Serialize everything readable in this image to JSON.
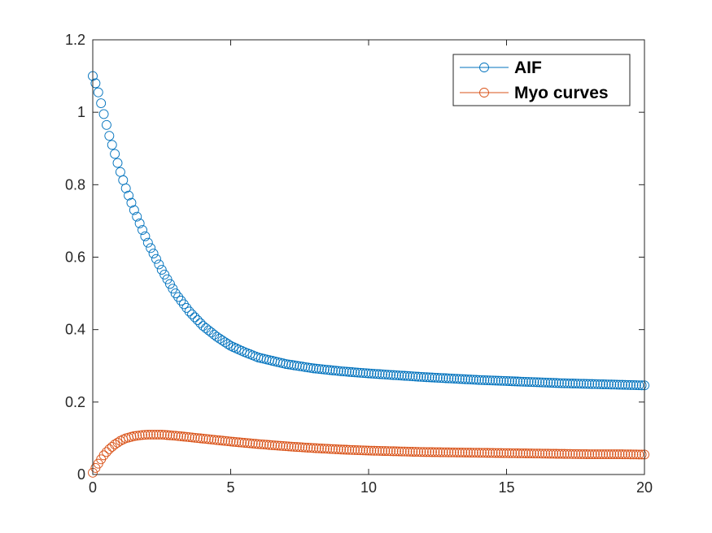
{
  "chart_data": {
    "type": "scatter",
    "title": "",
    "xlabel": "",
    "ylabel": "",
    "xlim": [
      0,
      20
    ],
    "ylim": [
      0,
      1.2
    ],
    "xticks": [
      "0",
      "5",
      "10",
      "15",
      "20"
    ],
    "yticks": [
      "0",
      "0.2",
      "0.4",
      "0.6",
      "0.8",
      "1",
      "1.2"
    ],
    "grid": false,
    "legend_position": "top-right",
    "marker": "circle",
    "series": [
      {
        "name": "AIF",
        "color": "#0072BD",
        "points": [
          [
            0.0,
            1.1
          ],
          [
            0.1,
            1.08
          ],
          [
            0.2,
            1.055
          ],
          [
            0.3,
            1.025
          ],
          [
            0.4,
            0.995
          ],
          [
            0.5,
            0.965
          ],
          [
            0.6,
            0.935
          ],
          [
            0.8,
            0.885
          ],
          [
            1.0,
            0.835
          ],
          [
            1.2,
            0.79
          ],
          [
            1.5,
            0.73
          ],
          [
            1.8,
            0.675
          ],
          [
            2.0,
            0.64
          ],
          [
            2.5,
            0.565
          ],
          [
            3.0,
            0.5
          ],
          [
            3.5,
            0.45
          ],
          [
            4.0,
            0.41
          ],
          [
            4.5,
            0.38
          ],
          [
            5.0,
            0.355
          ],
          [
            5.5,
            0.338
          ],
          [
            6.0,
            0.323
          ],
          [
            7.0,
            0.305
          ],
          [
            8.0,
            0.293
          ],
          [
            9.0,
            0.285
          ],
          [
            10.0,
            0.279
          ],
          [
            11.0,
            0.274
          ],
          [
            12.0,
            0.269
          ],
          [
            13.0,
            0.265
          ],
          [
            14.0,
            0.261
          ],
          [
            15.0,
            0.258
          ],
          [
            16.0,
            0.255
          ],
          [
            17.0,
            0.252
          ],
          [
            18.0,
            0.25
          ],
          [
            19.0,
            0.248
          ],
          [
            20.0,
            0.246
          ]
        ]
      },
      {
        "name": "Myo curves",
        "color": "#D95319",
        "points": [
          [
            0.0,
            0.005
          ],
          [
            0.1,
            0.018
          ],
          [
            0.2,
            0.03
          ],
          [
            0.3,
            0.042
          ],
          [
            0.4,
            0.053
          ],
          [
            0.5,
            0.062
          ],
          [
            0.6,
            0.07
          ],
          [
            0.8,
            0.083
          ],
          [
            1.0,
            0.093
          ],
          [
            1.2,
            0.1
          ],
          [
            1.5,
            0.106
          ],
          [
            1.8,
            0.109
          ],
          [
            2.0,
            0.11
          ],
          [
            2.5,
            0.11
          ],
          [
            3.0,
            0.107
          ],
          [
            3.5,
            0.103
          ],
          [
            4.0,
            0.099
          ],
          [
            4.5,
            0.095
          ],
          [
            5.0,
            0.091
          ],
          [
            6.0,
            0.084
          ],
          [
            7.0,
            0.078
          ],
          [
            8.0,
            0.073
          ],
          [
            9.0,
            0.069
          ],
          [
            10.0,
            0.066
          ],
          [
            11.0,
            0.064
          ],
          [
            12.0,
            0.062
          ],
          [
            13.0,
            0.061
          ],
          [
            14.0,
            0.06
          ],
          [
            15.0,
            0.059
          ],
          [
            16.0,
            0.058
          ],
          [
            17.0,
            0.057
          ],
          [
            18.0,
            0.056
          ],
          [
            19.0,
            0.056
          ],
          [
            20.0,
            0.055
          ]
        ]
      }
    ]
  }
}
